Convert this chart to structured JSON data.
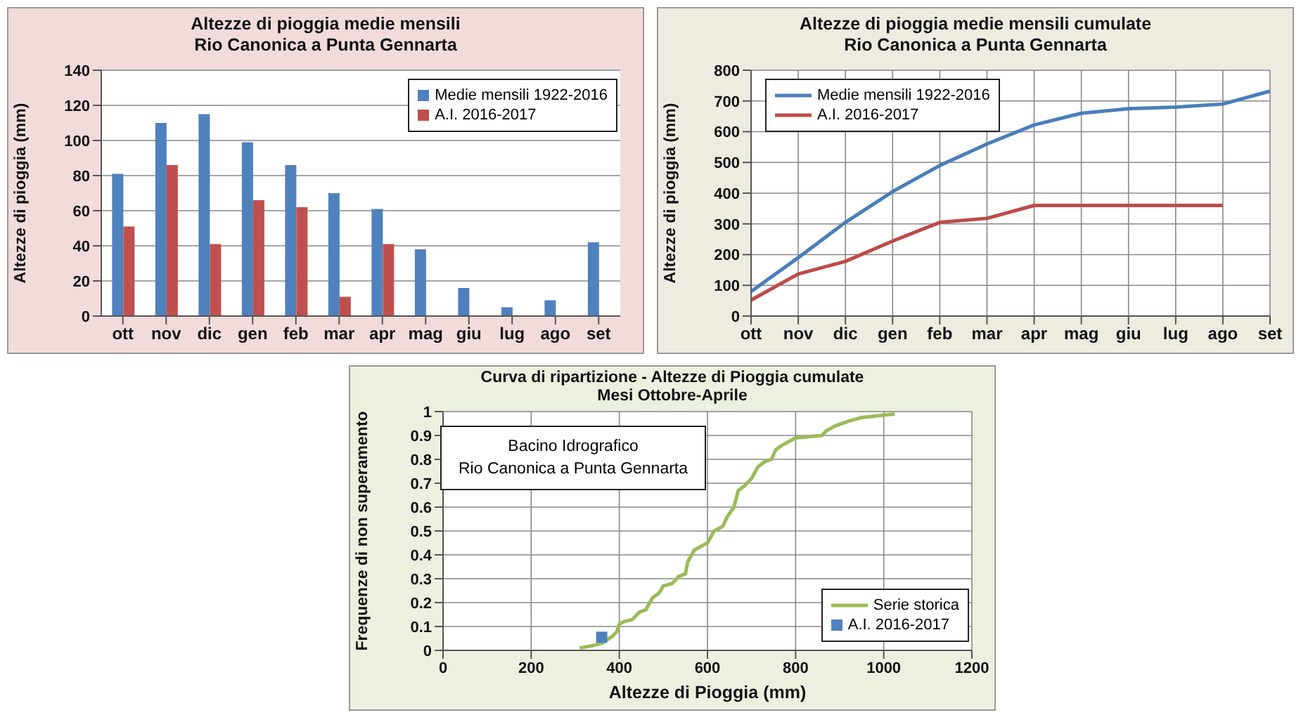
{
  "chart_data": [
    {
      "type": "bar",
      "title": "Altezze di pioggia medie mensili",
      "subtitle": "Rio Canonica a Punta Gennarta",
      "ylabel": "Altezze di pioggia (mm)",
      "categories": [
        "ott",
        "nov",
        "dic",
        "gen",
        "feb",
        "mar",
        "apr",
        "mag",
        "giu",
        "lug",
        "ago",
        "set"
      ],
      "series": [
        {
          "name": "Medie mensili 1922-2016",
          "color": "#4f81bd",
          "values": [
            81,
            110,
            115,
            99,
            86,
            70,
            61,
            38,
            16,
            5,
            9,
            42
          ]
        },
        {
          "name": "A.I. 2016-2017",
          "color": "#c0504d",
          "values": [
            51,
            86,
            41,
            66,
            62,
            11,
            41,
            null,
            null,
            null,
            null,
            null
          ]
        }
      ],
      "ylim": [
        0,
        140
      ],
      "yticks": [
        0,
        20,
        40,
        60,
        80,
        100,
        120,
        140
      ],
      "grid": "y",
      "legend": "top right"
    },
    {
      "type": "line",
      "title": "Altezze di pioggia medie mensili cumulate",
      "subtitle": "Rio Canonica a Punta Gennarta",
      "ylabel": "Altezze di pioggia (mm)",
      "categories": [
        "ott",
        "nov",
        "dic",
        "gen",
        "feb",
        "mar",
        "apr",
        "mag",
        "giu",
        "lug",
        "ago",
        "set"
      ],
      "series": [
        {
          "name": "Medie mensili 1922-2016",
          "color": "#4a7ebb",
          "values": [
            80,
            190,
            305,
            405,
            490,
            560,
            622,
            660,
            675,
            680,
            690,
            732
          ]
        },
        {
          "name": "A.I. 2016-2017",
          "color": "#be4b48",
          "values": [
            52,
            137,
            178,
            244,
            305,
            318,
            360,
            360,
            360,
            360,
            360,
            null
          ]
        }
      ],
      "ylim": [
        0,
        800
      ],
      "yticks": [
        0,
        100,
        200,
        300,
        400,
        500,
        600,
        700,
        800
      ],
      "grid": true,
      "legend": "top left",
      "marker": "none",
      "line_style": "solid"
    },
    {
      "type": "line",
      "title": "Curva di ripartizione - Altezze di Pioggia cumulate",
      "subtitle": "Mesi Ottobre-Aprile",
      "xlabel": "Altezze di Pioggia (mm)",
      "ylabel": "Frequenze di non superamento",
      "annotations": [
        "Bacino Idrografico",
        "Rio Canonica a Punta Gennarta"
      ],
      "series": [
        {
          "name": "Serie storica",
          "color": "#9bbb59",
          "marker": "none",
          "x": [
            310,
            340,
            360,
            385,
            395,
            400,
            410,
            430,
            445,
            460,
            475,
            490,
            500,
            520,
            535,
            550,
            555,
            570,
            590,
            600,
            615,
            635,
            645,
            660,
            670,
            685,
            700,
            715,
            730,
            745,
            755,
            770,
            790,
            800,
            860,
            870,
            890,
            920,
            950,
            1000,
            1025
          ],
          "values": [
            0.01,
            0.02,
            0.03,
            0.06,
            0.08,
            0.11,
            0.12,
            0.13,
            0.16,
            0.17,
            0.22,
            0.24,
            0.27,
            0.28,
            0.31,
            0.32,
            0.37,
            0.42,
            0.44,
            0.45,
            0.5,
            0.52,
            0.56,
            0.6,
            0.67,
            0.69,
            0.72,
            0.77,
            0.79,
            0.8,
            0.84,
            0.86,
            0.88,
            0.89,
            0.9,
            0.92,
            0.94,
            0.96,
            0.975,
            0.985,
            0.99
          ]
        },
        {
          "name": "A.I. 2016-2017",
          "type": "scatter",
          "color": "#4f81bd",
          "marker": "square",
          "x": [
            360
          ],
          "values": [
            0.055
          ]
        }
      ],
      "xlim": [
        0,
        1200
      ],
      "xticks": [
        0,
        200,
        400,
        600,
        800,
        1000,
        1200
      ],
      "ylim": [
        0,
        1
      ],
      "yticks": [
        0,
        0.1,
        0.2,
        0.3,
        0.4,
        0.5,
        0.6,
        0.7,
        0.8,
        0.9,
        1
      ],
      "grid": true,
      "legend": "bottom right",
      "line_style": "solid"
    }
  ]
}
